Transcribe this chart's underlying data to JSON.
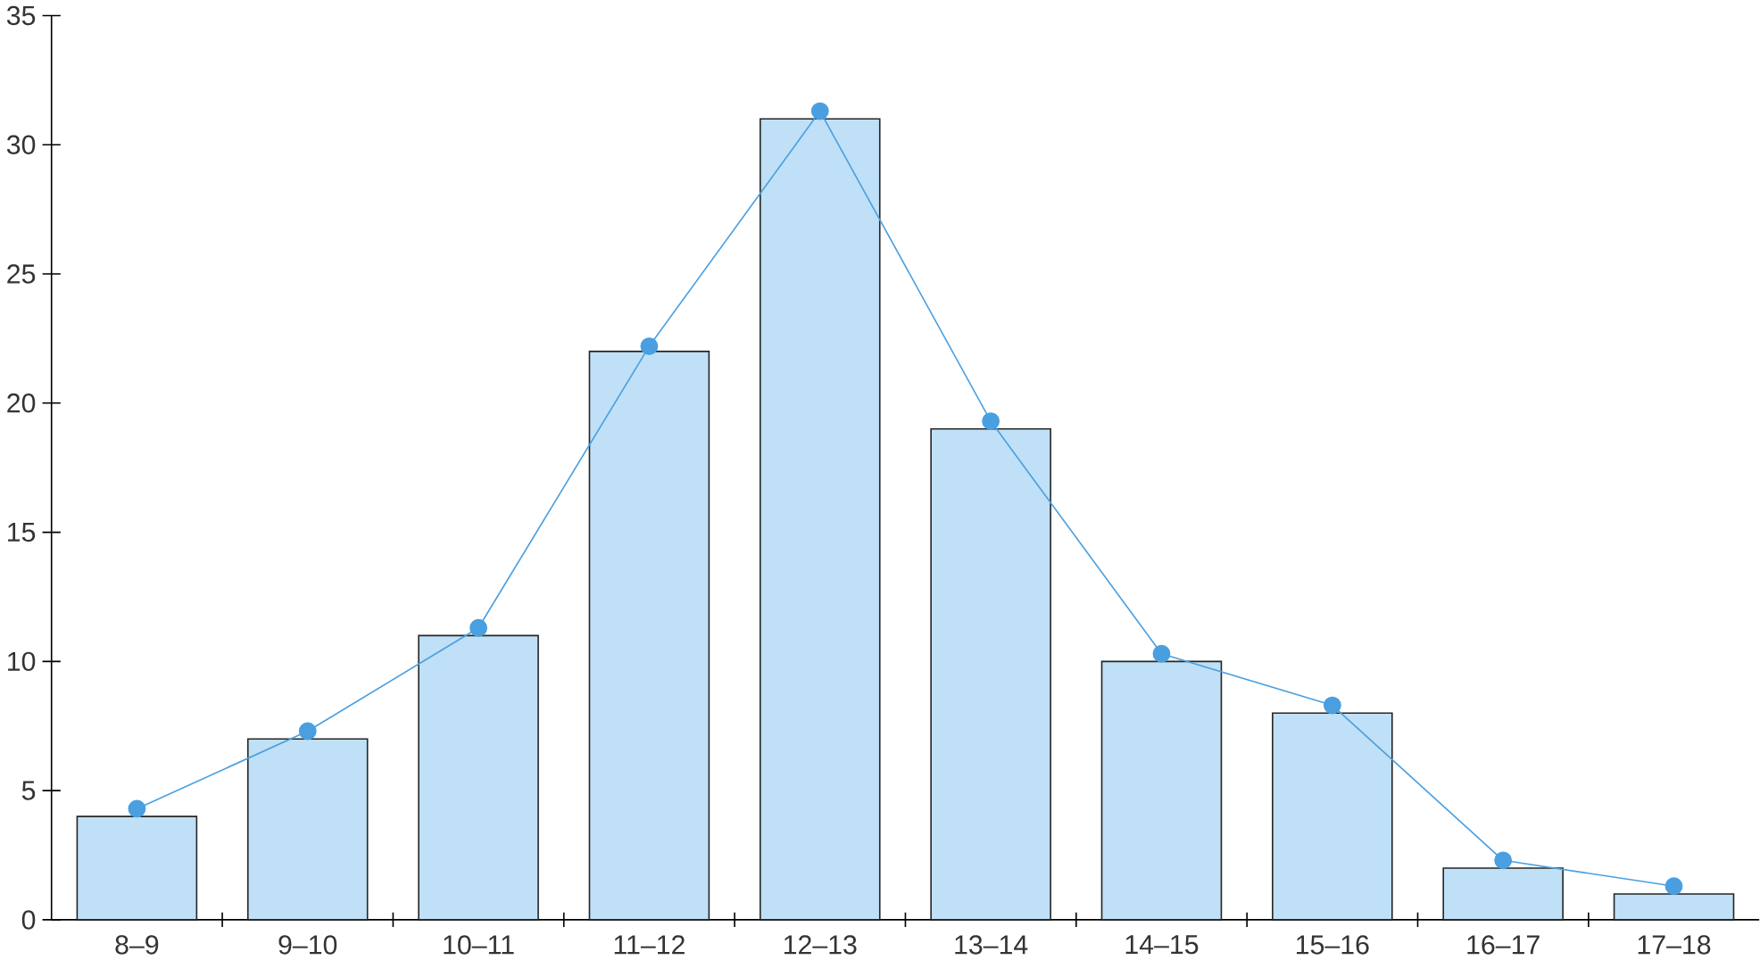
{
  "chart_data": {
    "type": "bar",
    "categories": [
      "8–9",
      "9–10",
      "10–11",
      "11–12",
      "12–13",
      "13–14",
      "14–15",
      "15–16",
      "16–17",
      "17–18"
    ],
    "series": [
      {
        "color": "#bfe0f6",
        "values": [
          4,
          7,
          11,
          22,
          31,
          19,
          10,
          8,
          2,
          1
        ]
      },
      {
        "type": "line",
        "color": "#4a9fe0",
        "marker": "circle",
        "values": [
          4.3,
          7.3,
          11.3,
          22.2,
          31.3,
          19.3,
          10.3,
          8.3,
          2.3,
          1.3
        ]
      }
    ],
    "ylim": [
      0,
      35
    ],
    "yticks": [
      0,
      5,
      10,
      15,
      20,
      25,
      30,
      35
    ],
    "grid": false
  }
}
